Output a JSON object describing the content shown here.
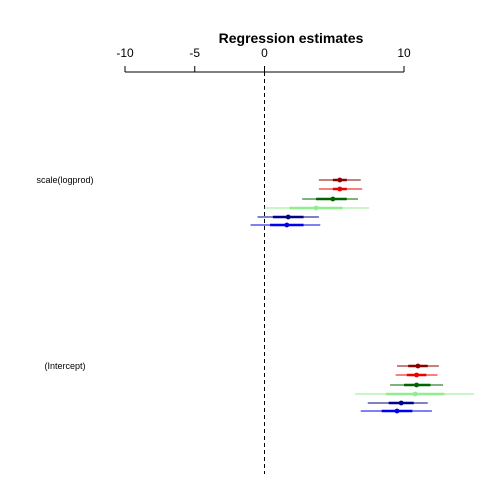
{
  "chart_data": {
    "type": "scatter",
    "title": "Regression estimates",
    "xlim": [
      -10,
      10
    ],
    "x_ticks": [
      -10,
      -5,
      0,
      10
    ],
    "x_tick_labels": [
      "-10",
      "-5",
      "0",
      "10"
    ],
    "reference_line": 0,
    "grid": false,
    "coefficients": [
      {
        "label": "scale(logprod)",
        "estimates": [
          {
            "estimate": 5.4,
            "inner": [
              4.9,
              5.9
            ],
            "outer": [
              3.9,
              6.9
            ],
            "color": "#8b0000"
          },
          {
            "estimate": 5.4,
            "inner": [
              4.9,
              5.9
            ],
            "outer": [
              3.9,
              7.0
            ],
            "color": "#ee0000"
          },
          {
            "estimate": 4.9,
            "inner": [
              3.7,
              5.9
            ],
            "outer": [
              2.7,
              6.7
            ],
            "color": "#006400"
          },
          {
            "estimate": 3.7,
            "inner": [
              1.8,
              5.6
            ],
            "outer": [
              0.0,
              7.5
            ],
            "color": "#90ee90"
          },
          {
            "estimate": 1.7,
            "inner": [
              0.6,
              2.8
            ],
            "outer": [
              -0.5,
              3.9
            ],
            "color": "#00008b"
          },
          {
            "estimate": 1.6,
            "inner": [
              0.4,
              2.8
            ],
            "outer": [
              -1.0,
              4.0
            ],
            "color": "#0000ee"
          }
        ]
      },
      {
        "label": "(Intercept)",
        "estimates": [
          {
            "estimate": 11.0,
            "inner": [
              10.3,
              11.7
            ],
            "outer": [
              9.5,
              12.5
            ],
            "color": "#8b0000"
          },
          {
            "estimate": 10.9,
            "inner": [
              10.2,
              11.6
            ],
            "outer": [
              9.4,
              12.4
            ],
            "color": "#ee0000"
          },
          {
            "estimate": 10.9,
            "inner": [
              10.0,
              11.9
            ],
            "outer": [
              9.0,
              12.8
            ],
            "color": "#006400"
          },
          {
            "estimate": 10.8,
            "inner": [
              8.7,
              12.9
            ],
            "outer": [
              6.5,
              15.0
            ],
            "color": "#90ee90"
          },
          {
            "estimate": 9.8,
            "inner": [
              8.9,
              10.7
            ],
            "outer": [
              7.4,
              11.7
            ],
            "color": "#00008b"
          },
          {
            "estimate": 9.5,
            "inner": [
              8.4,
              10.6
            ],
            "outer": [
              6.9,
              12.0
            ],
            "color": "#0000ee"
          }
        ]
      }
    ]
  }
}
